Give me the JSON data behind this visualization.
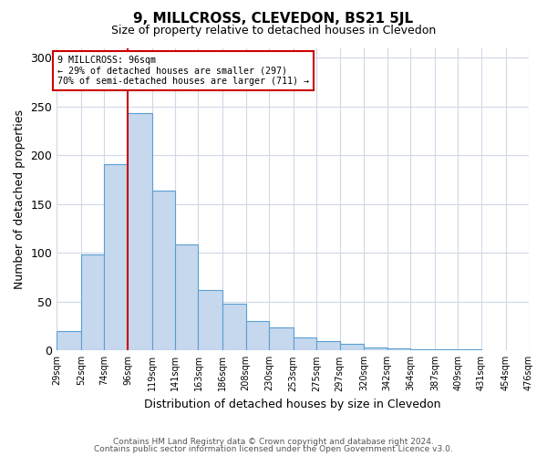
{
  "title": "9, MILLCROSS, CLEVEDON, BS21 5JL",
  "subtitle": "Size of property relative to detached houses in Clevedon",
  "xlabel": "Distribution of detached houses by size in Clevedon",
  "ylabel": "Number of detached properties",
  "bar_values": [
    20,
    98,
    191,
    243,
    164,
    109,
    62,
    48,
    30,
    24,
    13,
    10,
    7,
    3,
    2,
    1,
    1,
    1
  ],
  "bin_edges": [
    29,
    52,
    74,
    96,
    119,
    141,
    163,
    186,
    208,
    230,
    253,
    275,
    297,
    320,
    342,
    364,
    387,
    409,
    431
  ],
  "tick_labels": [
    "29sqm",
    "52sqm",
    "74sqm",
    "96sqm",
    "119sqm",
    "141sqm",
    "163sqm",
    "186sqm",
    "208sqm",
    "230sqm",
    "253sqm",
    "275sqm",
    "297sqm",
    "320sqm",
    "342sqm",
    "364sqm",
    "387sqm",
    "409sqm",
    "431sqm",
    "454sqm",
    "476sqm"
  ],
  "all_ticks": [
    29,
    52,
    74,
    96,
    119,
    141,
    163,
    186,
    208,
    230,
    253,
    275,
    297,
    320,
    342,
    364,
    387,
    409,
    431,
    454,
    476
  ],
  "bar_color": "#c5d8ed",
  "bar_edge_color": "#5a9fd4",
  "vline_x": 96,
  "vline_color": "#cc0000",
  "annotation_line1": "9 MILLCROSS: 96sqm",
  "annotation_line2": "← 29% of detached houses are smaller (297)",
  "annotation_line3": "70% of semi-detached houses are larger (711) →",
  "ylim": [
    0,
    310
  ],
  "xlim": [
    29,
    476
  ],
  "yticks": [
    0,
    50,
    100,
    150,
    200,
    250,
    300
  ],
  "background_color": "#ffffff",
  "grid_color": "#d0d8e8",
  "footer_line1": "Contains HM Land Registry data © Crown copyright and database right 2024.",
  "footer_line2": "Contains public sector information licensed under the Open Government Licence v3.0."
}
